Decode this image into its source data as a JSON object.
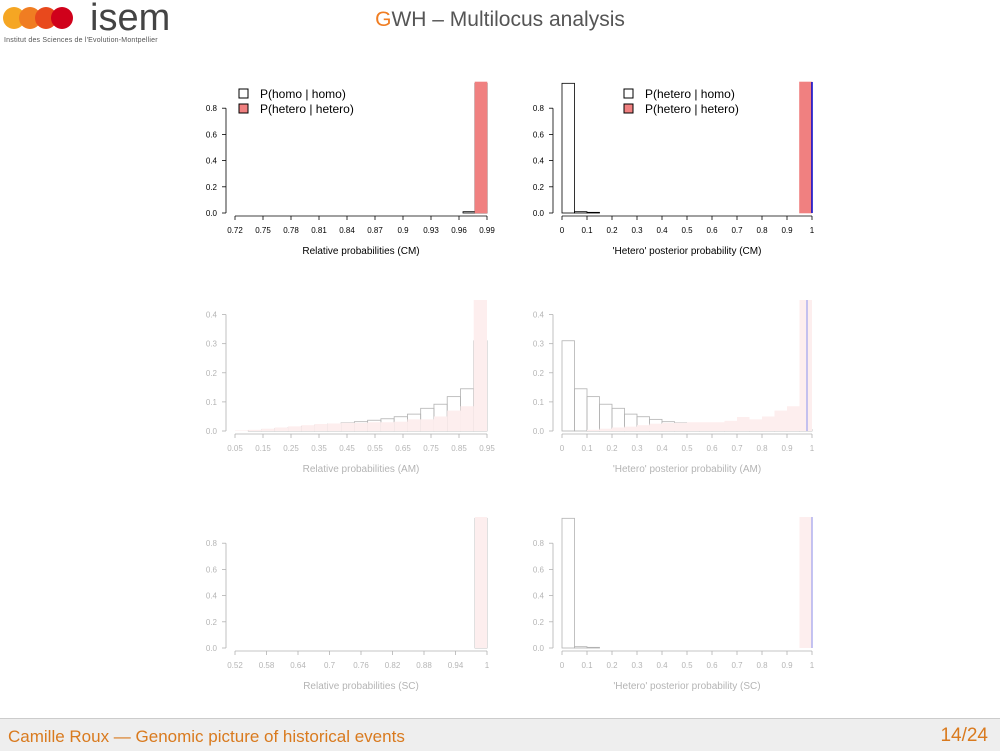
{
  "header": {
    "title_first_letter": "G",
    "title_rest": "WH – Multilocus analysis",
    "logo_text": "isem",
    "logo_subtitle": "Institut des Sciences de l'Evolution-Montpellier"
  },
  "footer": {
    "text": "Camille Roux — Genomic picture of historical events",
    "page": "14/24"
  },
  "colors": {
    "accent": "#f07d22",
    "bar_fill_red": "#f08080",
    "bar_fill_pink_faded": "#f9c9c9",
    "bar_outline": "#000000",
    "vline_blue": "#0000cc",
    "footer_text": "#d97a1e"
  },
  "chart_data": [
    {
      "type": "bar",
      "xlabel": "Relative probabilities (CM)",
      "xticklabels": [
        "0.72",
        "0.75",
        "0.78",
        "0.81",
        "0.84",
        "0.87",
        "0.9",
        "0.93",
        "0.96",
        "0.99"
      ],
      "ylim": [
        0,
        1.0
      ],
      "yticks": [
        0.0,
        0.2,
        0.4,
        0.6,
        0.8
      ],
      "legend": [
        "P(homo | homo)",
        "P(hetero | hetero)"
      ],
      "legend_position": "top-left",
      "faded": false,
      "series": [
        {
          "name": "P(homo | homo)",
          "values": [
            0,
            0,
            0,
            0,
            0,
            0,
            0,
            0,
            0,
            0,
            0,
            0,
            0,
            0,
            0,
            0,
            0,
            0,
            0,
            0.01,
            0.99
          ],
          "style": "outline"
        },
        {
          "name": "P(hetero | hetero)",
          "values": [
            0,
            0,
            0,
            0,
            0,
            0,
            0,
            0,
            0,
            0,
            0,
            0,
            0,
            0,
            0,
            0,
            0,
            0,
            0,
            0,
            1.0
          ],
          "style": "filled"
        }
      ]
    },
    {
      "type": "bar",
      "xlabel": "'Hetero' posterior probability (CM)",
      "xticklabels": [
        "0",
        "0.1",
        "0.2",
        "0.3",
        "0.4",
        "0.5",
        "0.6",
        "0.7",
        "0.8",
        "0.9",
        "1"
      ],
      "ylim": [
        0,
        1.0
      ],
      "yticks": [
        0.0,
        0.2,
        0.4,
        0.6,
        0.8
      ],
      "legend": [
        "P(hetero | homo)",
        "P(hetero | hetero)"
      ],
      "legend_position": "top-right",
      "faded": false,
      "vline": 1.0,
      "series": [
        {
          "name": "P(hetero | homo)",
          "values": [
            0.99,
            0.01,
            0.005,
            0,
            0,
            0,
            0,
            0,
            0,
            0,
            0,
            0,
            0,
            0,
            0,
            0,
            0,
            0,
            0,
            0
          ],
          "style": "outline"
        },
        {
          "name": "P(hetero | hetero)",
          "values": [
            0,
            0,
            0,
            0,
            0,
            0,
            0,
            0,
            0,
            0,
            0,
            0,
            0,
            0,
            0,
            0,
            0,
            0,
            0,
            1.0
          ],
          "style": "filled"
        }
      ]
    },
    {
      "type": "bar",
      "xlabel": "Relative probabilities (AM)",
      "xticklabels": [
        "0.05",
        "0.15",
        "0.25",
        "0.35",
        "0.45",
        "0.55",
        "0.65",
        "0.75",
        "0.85",
        "0.95"
      ],
      "ylim": [
        0,
        0.45
      ],
      "yticks": [
        0.0,
        0.1,
        0.2,
        0.3,
        0.4
      ],
      "faded": true,
      "series": [
        {
          "values": [
            0,
            0.002,
            0.004,
            0.008,
            0.012,
            0.016,
            0.02,
            0.024,
            0.028,
            0.032,
            0.037,
            0.042,
            0.049,
            0.058,
            0.078,
            0.092,
            0.118,
            0.145,
            0.31
          ],
          "style": "outline"
        },
        {
          "values": [
            0.002,
            0.004,
            0.008,
            0.012,
            0.016,
            0.02,
            0.024,
            0.026,
            0.028,
            0.028,
            0.03,
            0.03,
            0.032,
            0.04,
            0.04,
            0.05,
            0.07,
            0.085,
            0.45
          ],
          "style": "filled"
        }
      ]
    },
    {
      "type": "bar",
      "xlabel": "'Hetero' posterior probability (AM)",
      "xticklabels": [
        "0",
        "0.1",
        "0.2",
        "0.3",
        "0.4",
        "0.5",
        "0.6",
        "0.7",
        "0.8",
        "0.9",
        "1"
      ],
      "ylim": [
        0,
        0.45
      ],
      "yticks": [
        0.0,
        0.1,
        0.2,
        0.3,
        0.4
      ],
      "faded": true,
      "vline": 0.98,
      "series": [
        {
          "values": [
            0.31,
            0.145,
            0.118,
            0.092,
            0.078,
            0.058,
            0.049,
            0.04,
            0.032,
            0.028,
            0.025,
            0.022,
            0.02,
            0.018,
            0.016,
            0.014,
            0.012,
            0.01,
            0.008,
            0.005
          ],
          "style": "outline"
        },
        {
          "values": [
            0,
            0,
            0.004,
            0.008,
            0.012,
            0.015,
            0.02,
            0.025,
            0.028,
            0.028,
            0.03,
            0.03,
            0.03,
            0.035,
            0.048,
            0.04,
            0.05,
            0.07,
            0.085,
            0.45
          ],
          "style": "filled"
        }
      ]
    },
    {
      "type": "bar",
      "xlabel": "Relative probabilities (SC)",
      "xticklabels": [
        "0.52",
        "0.58",
        "0.64",
        "0.7",
        "0.76",
        "0.82",
        "0.88",
        "0.94",
        "1"
      ],
      "ylim": [
        0,
        1.0
      ],
      "yticks": [
        0.0,
        0.2,
        0.4,
        0.6,
        0.8
      ],
      "faded": true,
      "series": [
        {
          "values": [
            0,
            0,
            0,
            0,
            0,
            0,
            0,
            0,
            0,
            0,
            0,
            0,
            0,
            0,
            0,
            0,
            0,
            0,
            0,
            0,
            0.99
          ],
          "style": "outline"
        },
        {
          "values": [
            0,
            0,
            0,
            0,
            0,
            0,
            0,
            0,
            0,
            0,
            0,
            0,
            0,
            0,
            0,
            0,
            0,
            0,
            0,
            0,
            1.0
          ],
          "style": "filled"
        }
      ]
    },
    {
      "type": "bar",
      "xlabel": "'Hetero' posterior probability (SC)",
      "xticklabels": [
        "0",
        "0.1",
        "0.2",
        "0.3",
        "0.4",
        "0.5",
        "0.6",
        "0.7",
        "0.8",
        "0.9",
        "1"
      ],
      "ylim": [
        0,
        1.0
      ],
      "yticks": [
        0.0,
        0.2,
        0.4,
        0.6,
        0.8
      ],
      "faded": true,
      "vline": 1.0,
      "series": [
        {
          "values": [
            0.99,
            0.01,
            0.005,
            0,
            0,
            0,
            0,
            0,
            0,
            0,
            0,
            0,
            0,
            0,
            0,
            0,
            0,
            0,
            0,
            0
          ],
          "style": "outline"
        },
        {
          "values": [
            0,
            0,
            0,
            0,
            0,
            0,
            0,
            0,
            0,
            0,
            0,
            0,
            0,
            0,
            0,
            0,
            0,
            0,
            0,
            1.0
          ],
          "style": "filled"
        }
      ]
    }
  ]
}
